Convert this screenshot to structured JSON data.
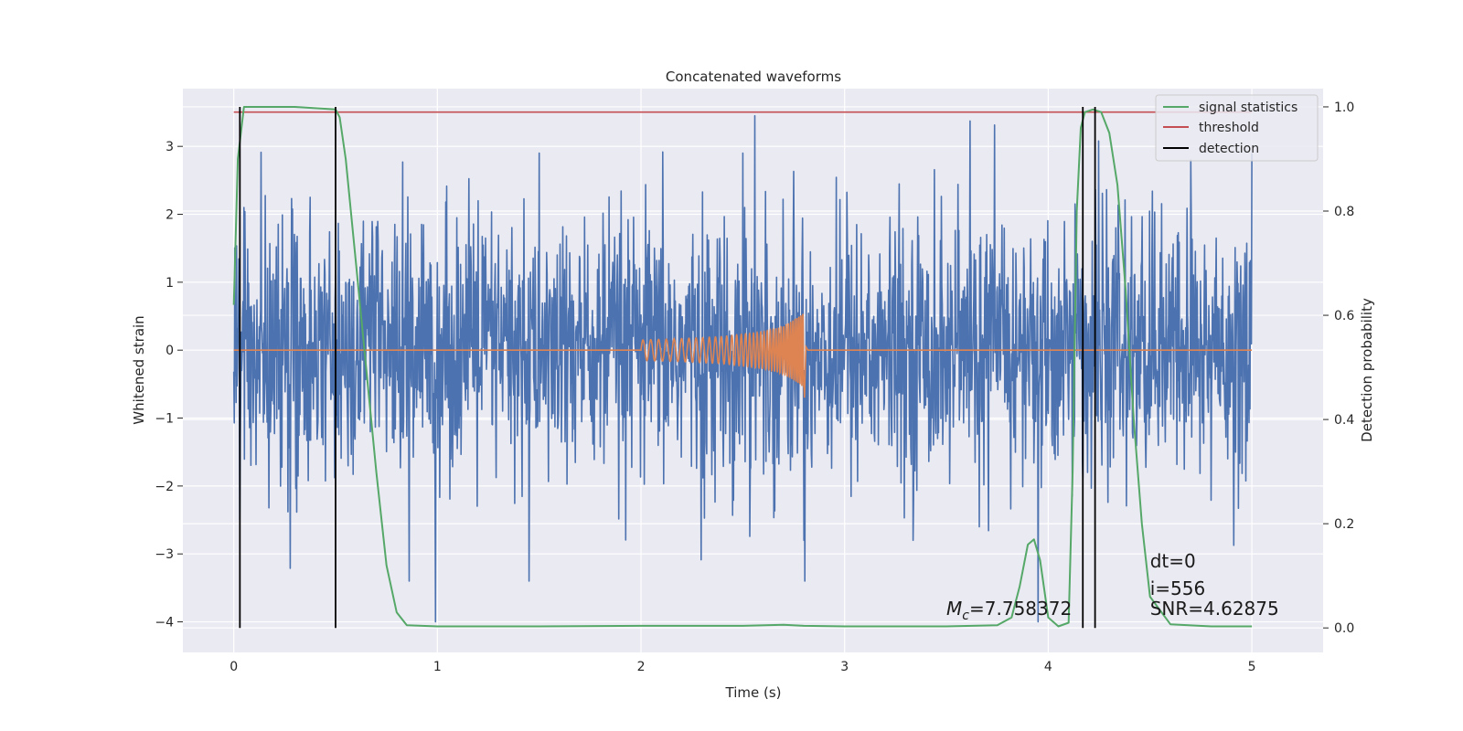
{
  "chart_data": {
    "type": "line",
    "title": "Concatenated waveforms",
    "xlabel": "Time (s)",
    "ylabel_left": "Whitened strain",
    "ylabel_right": "Detection probability",
    "xlim": [
      -0.25,
      5.35
    ],
    "ylim_left": [
      -4.45,
      3.85
    ],
    "ylim_right": [
      -0.047,
      1.035
    ],
    "xticks": [
      0,
      1,
      2,
      3,
      4,
      5
    ],
    "yticks_left": [
      -4,
      -3,
      -2,
      -1,
      0,
      1,
      2,
      3
    ],
    "yticks_right": [
      0.0,
      0.2,
      0.4,
      0.6,
      0.8,
      1.0
    ],
    "xtick_labels": [
      "0",
      "1",
      "2",
      "3",
      "4",
      "5"
    ],
    "ytick_labels_left": [
      "−4",
      "−3",
      "−2",
      "−1",
      "0",
      "1",
      "2",
      "3"
    ],
    "ytick_labels_right": [
      "0.0",
      "0.2",
      "0.4",
      "0.6",
      "0.8",
      "1.0"
    ],
    "grid": true,
    "background": "#eaeaf2",
    "legend": {
      "placement": "top-right",
      "entries": [
        {
          "label": "signal statistics",
          "color": "#55a868"
        },
        {
          "label": "threshold",
          "color": "#c44e52"
        },
        {
          "label": "detection",
          "color": "#000000"
        }
      ]
    },
    "series": [
      {
        "name": "whitened-strain-noise",
        "axis": "left",
        "color": "#4c72b0",
        "x_range": [
          0,
          5
        ],
        "typical_amplitude": 1.5,
        "peak_amplitude": 3.4,
        "peaks": [
          {
            "x": 0.03,
            "y": -2.5
          },
          {
            "x": 0.05,
            "y": 2.1
          },
          {
            "x": 0.99,
            "y": -4.0
          },
          {
            "x": 1.2,
            "y": 2.2
          },
          {
            "x": 1.45,
            "y": -3.4
          },
          {
            "x": 1.5,
            "y": 2.9
          },
          {
            "x": 2.5,
            "y": 2.9
          },
          {
            "x": 2.56,
            "y": 3.45
          },
          {
            "x": 2.8,
            "y": -2.8
          },
          {
            "x": 3.95,
            "y": -4.0
          },
          {
            "x": 4.7,
            "y": 2.8
          },
          {
            "x": 5.0,
            "y": 2.9
          }
        ]
      },
      {
        "name": "injected-chirp",
        "axis": "left",
        "color": "#dd8452",
        "x": [
          0,
          2.0,
          2.2,
          2.4,
          2.6,
          2.7,
          2.78,
          2.8,
          2.82,
          5.0
        ],
        "envelope": [
          0,
          0.15,
          0.17,
          0.2,
          0.27,
          0.35,
          0.5,
          0.55,
          0.02,
          0
        ],
        "lower_extreme": -0.7
      },
      {
        "name": "signal statistics",
        "axis": "right",
        "color": "#55a868",
        "x": [
          0.0,
          0.02,
          0.05,
          0.08,
          0.12,
          0.3,
          0.5,
          0.52,
          0.55,
          0.6,
          0.65,
          0.7,
          0.75,
          0.8,
          0.85,
          1.0,
          1.5,
          2.0,
          2.5,
          2.7,
          2.8,
          3.0,
          3.5,
          3.75,
          3.82,
          3.86,
          3.9,
          3.93,
          3.96,
          4.0,
          4.05,
          4.1,
          4.12,
          4.14,
          4.16,
          4.18,
          4.22,
          4.26,
          4.3,
          4.34,
          4.38,
          4.42,
          4.46,
          4.5,
          4.6,
          4.8,
          5.0
        ],
        "y": [
          0.62,
          0.9,
          1.0,
          1.0,
          1.0,
          1.0,
          0.995,
          0.98,
          0.9,
          0.7,
          0.5,
          0.3,
          0.12,
          0.03,
          0.005,
          0.003,
          0.003,
          0.004,
          0.004,
          0.006,
          0.004,
          0.003,
          0.003,
          0.005,
          0.02,
          0.08,
          0.16,
          0.17,
          0.13,
          0.02,
          0.003,
          0.01,
          0.3,
          0.8,
          0.96,
          0.99,
          0.995,
          0.99,
          0.95,
          0.85,
          0.65,
          0.4,
          0.2,
          0.06,
          0.007,
          0.003,
          0.003
        ]
      },
      {
        "name": "threshold",
        "axis": "right",
        "color": "#c44e52",
        "x": [
          0,
          5
        ],
        "y": [
          0.99,
          0.99
        ]
      }
    ],
    "detections": [
      0.03,
      0.5,
      4.17,
      4.23
    ],
    "annotations": {
      "chirp_mass": {
        "symbol": "M",
        "subscript": "c",
        "value": "=7.758372",
        "x": 3.5,
        "y": -3.9
      },
      "stats": [
        {
          "text": "dt=0",
          "x": 4.5,
          "y": -3.2
        },
        {
          "text": "i=556",
          "x": 4.5,
          "y": -3.6
        },
        {
          "text": "SNR=4.62875",
          "x": 4.5,
          "y": -3.9
        }
      ]
    }
  }
}
